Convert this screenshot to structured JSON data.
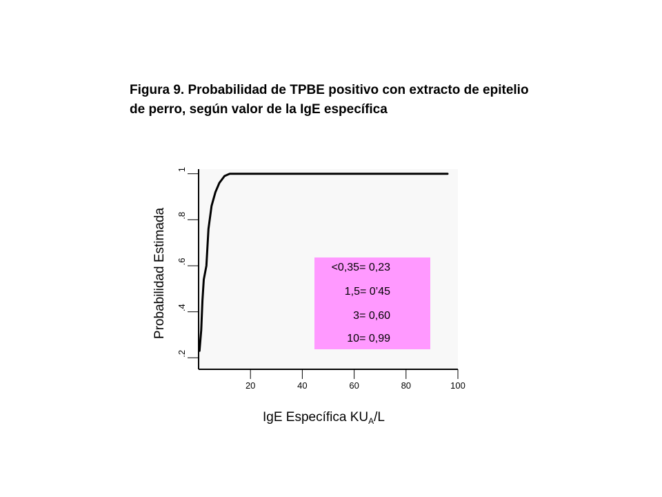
{
  "title": {
    "line1": "Figura 9. Probabilidad de TPBE positivo con extracto de epitelio",
    "line2": "de perro, según valor de la IgE específica"
  },
  "chart_data": {
    "type": "line",
    "title": "",
    "ylabel": "Probabilidad Estimada",
    "xlabel_main": "IgE Específica KU",
    "xlabel_sub": "A",
    "xlabel_tail": "/L",
    "xlim": [
      0,
      100
    ],
    "ylim": [
      0.15,
      1.02
    ],
    "x_ticks": [
      20,
      40,
      60,
      80,
      100
    ],
    "x_tick_labels": [
      "20",
      "40",
      "60",
      "80",
      "100"
    ],
    "y_ticks": [
      0.2,
      0.4,
      0.6,
      0.8,
      1.0
    ],
    "y_tick_labels": [
      ".2",
      ".4",
      ".6",
      ".8",
      "1"
    ],
    "series": [
      {
        "color": "#000000",
        "points": [
          [
            0.35,
            0.23
          ],
          [
            1.0,
            0.32
          ],
          [
            1.5,
            0.45
          ],
          [
            2.0,
            0.54
          ],
          [
            3.0,
            0.6
          ],
          [
            3.8,
            0.76
          ],
          [
            5.0,
            0.86
          ],
          [
            6.5,
            0.92
          ],
          [
            8.0,
            0.96
          ],
          [
            10.0,
            0.99
          ],
          [
            12.0,
            1.0
          ],
          [
            40.0,
            1.0
          ],
          [
            96.0,
            1.0
          ]
        ]
      }
    ],
    "annotation_box_color": "#ff99ff",
    "annotation_lines": [
      "<0,35= 0,23",
      "1,5= 0’45",
      "3= 0,60",
      "10= 0,99"
    ]
  }
}
